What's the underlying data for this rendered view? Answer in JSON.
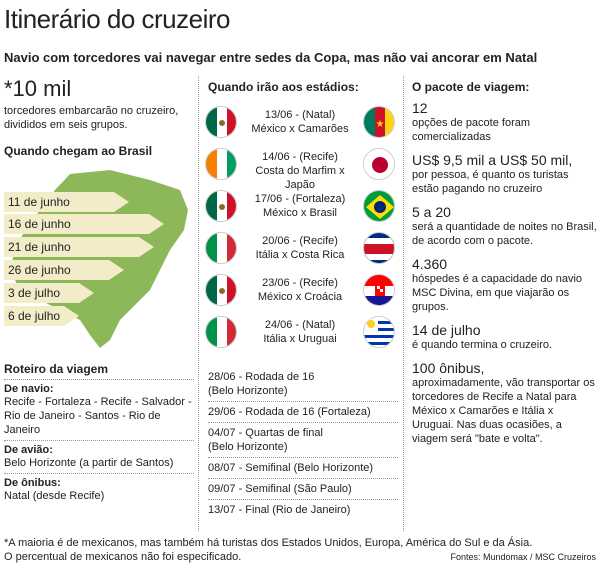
{
  "title": "Itinerário do cruzeiro",
  "subtitle": "Navio com torcedores vai navegar entre sedes da Copa, mas não vai ancorar em Natal",
  "left": {
    "big_number": "*10 mil",
    "big_text": "torcedores embarcarão no cruzeiro, divididos em seis grupos.",
    "arrival_header": "Quando chegam ao Brasil",
    "arrivals": [
      "11 de junho",
      "16 de junho",
      "21 de junho",
      "26 de junho",
      "3 de julho",
      "6 de julho"
    ],
    "route_header": "Roteiro da viagem",
    "ship_label": "De navio:",
    "ship_text": "Recife - Fortaleza - Recife - Salvador - Rio de Janeiro - Santos - Rio de Janeiro",
    "plane_label": "De avião:",
    "plane_text": "Belo Horizonte (a partir de Santos)",
    "bus_label": "De ônibus:",
    "bus_text": "Natal (desde Recife)"
  },
  "middle": {
    "header": "Quando irão aos estádios:",
    "matches": [
      {
        "line1": "13/06 - (Natal)",
        "line2": "México x Camarões",
        "flag_left": "mexico",
        "flag_right": "cameroon"
      },
      {
        "line1": "14/06 - (Recife)",
        "line2": "Costa do Marfim x Japão",
        "flag_left": "ivory-coast",
        "flag_right": "japan"
      },
      {
        "line1": "17/06 - (Fortaleza)",
        "line2": "México x Brasil",
        "flag_left": "mexico",
        "flag_right": "brazil"
      },
      {
        "line1": "20/06 - (Recife)",
        "line2": "Itália x Costa Rica",
        "flag_left": "italy",
        "flag_right": "costa-rica"
      },
      {
        "line1": "23/06 - (Recife)",
        "line2": "México x Croácia",
        "flag_left": "mexico",
        "flag_right": "croatia"
      },
      {
        "line1": "24/06 - (Natal)",
        "line2": "Itália x Uruguai",
        "flag_left": "italy",
        "flag_right": "uruguay"
      }
    ],
    "schedule": [
      [
        "28/06 - Rodada de 16",
        "(Belo Horizonte)"
      ],
      [
        "29/06 - Rodada de 16 (Fortaleza)"
      ],
      [
        "04/07 - Quartas de final",
        "(Belo Horizonte)"
      ],
      [
        "08/07 - Semifinal (Belo Horizonte)"
      ],
      [
        "09/07 - Semifinal (São Paulo)"
      ],
      [
        "13/07 - Final (Rio de Janeiro)"
      ]
    ]
  },
  "right": {
    "header": "O pacote de viagem:",
    "facts": [
      {
        "num": "12",
        "txt": "opções de pacote foram comercializadas"
      },
      {
        "num": "US$ 9,5 mil a US$ 50 mil,",
        "txt": "por pessoa, é quanto os turistas estão pagando no cruzeiro"
      },
      {
        "num": "5 a 20",
        "txt": "será a quantidade de noites no Brasil, de acordo com o pacote."
      },
      {
        "num": "4.360",
        "txt": "hóspedes é a capacidade do navio MSC Divina, em que viajarão os grupos."
      },
      {
        "num": "14 de julho",
        "txt": "é quando termina o cruzeiro."
      },
      {
        "num": "100 ônibus,",
        "txt": "aproximadamente, vão transportar os torcedores de Recife a Natal para México x Camarões e Itália x Uruguai. Nas duas ocasiões, a viagem será \"bate e volta\"."
      }
    ]
  },
  "footnote1": "*A maioria é de mexicanos, mas também há turistas dos Estados Unidos, Europa, América do Sul e da Ásia.",
  "footnote2": "O percentual de mexicanos não foi especificado.",
  "source": "Fontes: Mundomax / MSC Cruzeiros",
  "colors": {
    "arrow": "#f2ecc9",
    "map": "#8db85a"
  }
}
